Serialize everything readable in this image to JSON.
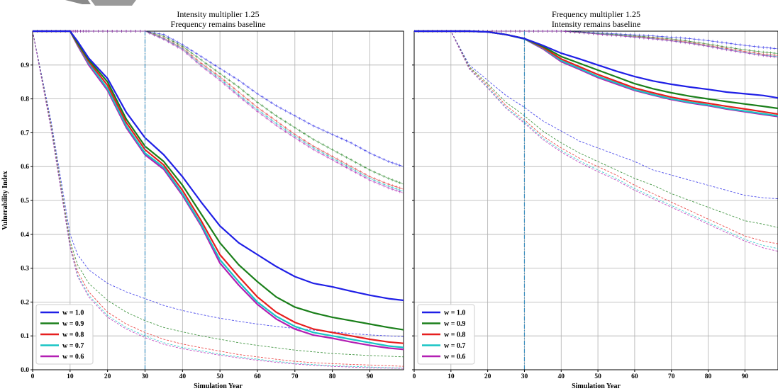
{
  "colors": {
    "w1.0": "#1f1fe6",
    "w0.9": "#1a7f1a",
    "w0.8": "#e61f1f",
    "w0.7": "#17c4c4",
    "w0.6": "#b31fb3",
    "vline": "#3a8fbf",
    "grid": "#b0b0b0"
  },
  "chart_data": [
    {
      "type": "line",
      "title": "Intensity multiplier 1.25",
      "subtitle": "Frequency remains baseline",
      "xlabel": "Simulation Year",
      "ylabel": "Vulnerability Index",
      "xlim": [
        0,
        99
      ],
      "ylim": [
        0,
        1.0
      ],
      "xticks": [
        "0",
        "10",
        "20",
        "30",
        "40",
        "50",
        "60",
        "70",
        "80",
        "90"
      ],
      "yticks": [
        "0.0",
        "0.1",
        "0.2",
        "0.3",
        "0.4",
        "0.5",
        "0.6",
        "0.7",
        "0.8",
        "0.9"
      ],
      "grid": true,
      "vline_x": 30,
      "legend_placement": "lower-left",
      "legend": [
        "w = 1.0",
        "w = 0.9",
        "w = 0.8",
        "w = 0.7",
        "w = 0.6"
      ],
      "x": [
        0,
        5,
        10,
        12,
        15,
        20,
        25,
        30,
        35,
        40,
        45,
        50,
        55,
        60,
        65,
        70,
        75,
        80,
        85,
        90,
        95,
        99
      ],
      "series_main": [
        {
          "name": "w = 1.0",
          "values": [
            1.0,
            1.0,
            1.0,
            0.97,
            0.92,
            0.86,
            0.76,
            0.685,
            0.635,
            0.57,
            0.495,
            0.425,
            0.375,
            0.34,
            0.305,
            0.275,
            0.255,
            0.245,
            0.232,
            0.22,
            0.21,
            0.205
          ]
        },
        {
          "name": "w = 0.9",
          "values": [
            1.0,
            1.0,
            1.0,
            0.965,
            0.915,
            0.85,
            0.74,
            0.66,
            0.615,
            0.545,
            0.46,
            0.375,
            0.31,
            0.26,
            0.215,
            0.185,
            0.168,
            0.155,
            0.145,
            0.135,
            0.125,
            0.118
          ]
        },
        {
          "name": "w = 0.8",
          "values": [
            1.0,
            1.0,
            1.0,
            0.962,
            0.91,
            0.84,
            0.73,
            0.65,
            0.605,
            0.53,
            0.44,
            0.34,
            0.275,
            0.215,
            0.17,
            0.14,
            0.12,
            0.11,
            0.1,
            0.09,
            0.082,
            0.078
          ]
        },
        {
          "name": "w = 0.7",
          "values": [
            1.0,
            1.0,
            1.0,
            0.96,
            0.905,
            0.83,
            0.72,
            0.64,
            0.598,
            0.52,
            0.43,
            0.325,
            0.26,
            0.2,
            0.158,
            0.128,
            0.11,
            0.1,
            0.09,
            0.08,
            0.07,
            0.066
          ]
        },
        {
          "name": "w = 0.6",
          "values": [
            1.0,
            1.0,
            1.0,
            0.958,
            0.9,
            0.825,
            0.715,
            0.635,
            0.592,
            0.515,
            0.425,
            0.315,
            0.25,
            0.193,
            0.15,
            0.12,
            0.102,
            0.093,
            0.082,
            0.072,
            0.064,
            0.06
          ]
        }
      ],
      "series_plus": [
        {
          "name": "w = 1.0",
          "values": [
            1.0,
            1.0,
            1.0,
            1.0,
            1.0,
            1.0,
            1.0,
            1.0,
            0.99,
            0.96,
            0.925,
            0.89,
            0.855,
            0.815,
            0.78,
            0.75,
            0.72,
            0.695,
            0.67,
            0.64,
            0.615,
            0.6
          ]
        },
        {
          "name": "w = 0.9",
          "values": [
            1.0,
            1.0,
            1.0,
            1.0,
            1.0,
            1.0,
            1.0,
            1.0,
            0.985,
            0.955,
            0.915,
            0.875,
            0.835,
            0.79,
            0.75,
            0.715,
            0.68,
            0.65,
            0.62,
            0.59,
            0.565,
            0.548
          ]
        },
        {
          "name": "w = 0.8",
          "values": [
            1.0,
            1.0,
            1.0,
            1.0,
            1.0,
            1.0,
            1.0,
            1.0,
            0.98,
            0.95,
            0.905,
            0.865,
            0.82,
            0.775,
            0.735,
            0.695,
            0.66,
            0.63,
            0.6,
            0.57,
            0.548,
            0.533
          ]
        },
        {
          "name": "w = 0.7",
          "values": [
            1.0,
            1.0,
            1.0,
            1.0,
            1.0,
            1.0,
            1.0,
            1.0,
            0.978,
            0.948,
            0.9,
            0.86,
            0.812,
            0.768,
            0.728,
            0.69,
            0.655,
            0.625,
            0.595,
            0.565,
            0.542,
            0.527
          ]
        },
        {
          "name": "w = 0.6",
          "values": [
            1.0,
            1.0,
            1.0,
            1.0,
            1.0,
            1.0,
            1.0,
            1.0,
            0.976,
            0.945,
            0.897,
            0.855,
            0.808,
            0.763,
            0.722,
            0.685,
            0.65,
            0.62,
            0.59,
            0.56,
            0.537,
            0.522
          ]
        }
      ],
      "series_dashed": [
        {
          "name": "w = 1.0",
          "values": [
            1.0,
            0.73,
            0.4,
            0.34,
            0.295,
            0.255,
            0.23,
            0.21,
            0.19,
            0.175,
            0.163,
            0.152,
            0.143,
            0.135,
            0.128,
            0.122,
            0.117,
            0.112,
            0.107,
            0.103,
            0.1,
            0.098
          ]
        },
        {
          "name": "w = 0.9",
          "values": [
            1.0,
            0.72,
            0.38,
            0.31,
            0.255,
            0.205,
            0.17,
            0.145,
            0.125,
            0.112,
            0.1,
            0.09,
            0.08,
            0.072,
            0.065,
            0.058,
            0.053,
            0.048,
            0.045,
            0.042,
            0.04,
            0.038
          ]
        },
        {
          "name": "w = 0.8",
          "values": [
            1.0,
            0.715,
            0.37,
            0.29,
            0.23,
            0.17,
            0.135,
            0.11,
            0.09,
            0.076,
            0.065,
            0.055,
            0.045,
            0.038,
            0.031,
            0.025,
            0.021,
            0.018,
            0.016,
            0.014,
            0.012,
            0.01
          ]
        },
        {
          "name": "w = 0.7",
          "values": [
            1.0,
            0.71,
            0.365,
            0.28,
            0.22,
            0.16,
            0.125,
            0.1,
            0.08,
            0.066,
            0.056,
            0.046,
            0.038,
            0.031,
            0.025,
            0.019,
            0.015,
            0.012,
            0.01,
            0.008,
            0.006,
            0.005
          ]
        },
        {
          "name": "w = 0.6",
          "values": [
            1.0,
            0.705,
            0.36,
            0.275,
            0.215,
            0.155,
            0.12,
            0.095,
            0.075,
            0.062,
            0.052,
            0.043,
            0.035,
            0.028,
            0.022,
            0.017,
            0.013,
            0.01,
            0.008,
            0.006,
            0.005,
            0.004
          ]
        }
      ]
    },
    {
      "type": "line",
      "title": "Frequency multiplier 1.25",
      "subtitle": "Intensity remains baseline",
      "xlabel": "Simulation Year",
      "ylabel": "",
      "xlim": [
        0,
        99
      ],
      "ylim": [
        0,
        1.0
      ],
      "xticks": [
        "0",
        "10",
        "20",
        "30",
        "40",
        "50",
        "60",
        "70",
        "80",
        "90"
      ],
      "yticks": [],
      "grid": true,
      "vline_x": 30,
      "legend_placement": "lower-left",
      "legend": [
        "w = 1.0",
        "w = 0.9",
        "w = 0.8",
        "w = 0.7",
        "w = 0.6"
      ],
      "x": [
        0,
        5,
        10,
        15,
        20,
        25,
        30,
        35,
        40,
        45,
        50,
        55,
        60,
        65,
        70,
        75,
        80,
        85,
        90,
        95,
        99
      ],
      "series_main": [
        {
          "name": "w = 1.0",
          "values": [
            1.0,
            1.0,
            1.0,
            1.0,
            0.998,
            0.99,
            0.978,
            0.958,
            0.935,
            0.918,
            0.9,
            0.882,
            0.866,
            0.853,
            0.843,
            0.835,
            0.828,
            0.82,
            0.815,
            0.81,
            0.803
          ]
        },
        {
          "name": "w = 0.9",
          "values": [
            1.0,
            1.0,
            1.0,
            1.0,
            0.998,
            0.99,
            0.978,
            0.955,
            0.925,
            0.905,
            0.885,
            0.865,
            0.845,
            0.83,
            0.818,
            0.808,
            0.8,
            0.792,
            0.785,
            0.778,
            0.772
          ]
        },
        {
          "name": "w = 0.8",
          "values": [
            1.0,
            1.0,
            1.0,
            1.0,
            0.998,
            0.99,
            0.978,
            0.952,
            0.918,
            0.895,
            0.872,
            0.852,
            0.832,
            0.818,
            0.805,
            0.795,
            0.787,
            0.778,
            0.77,
            0.762,
            0.755
          ]
        },
        {
          "name": "w = 0.7",
          "values": [
            1.0,
            1.0,
            1.0,
            1.0,
            0.998,
            0.99,
            0.977,
            0.95,
            0.913,
            0.89,
            0.866,
            0.847,
            0.827,
            0.813,
            0.8,
            0.79,
            0.782,
            0.772,
            0.764,
            0.756,
            0.75
          ]
        },
        {
          "name": "w = 0.6",
          "values": [
            1.0,
            1.0,
            1.0,
            1.0,
            0.998,
            0.99,
            0.977,
            0.948,
            0.91,
            0.887,
            0.863,
            0.844,
            0.825,
            0.811,
            0.798,
            0.788,
            0.78,
            0.77,
            0.762,
            0.754,
            0.748
          ]
        }
      ],
      "series_plus": [
        {
          "name": "w = 1.0",
          "values": [
            1.0,
            1.0,
            1.0,
            1.0,
            1.0,
            1.0,
            1.0,
            1.0,
            1.0,
            0.998,
            0.995,
            0.992,
            0.989,
            0.986,
            0.982,
            0.978,
            0.972,
            0.965,
            0.958,
            0.952,
            0.948
          ]
        },
        {
          "name": "w = 0.9",
          "values": [
            1.0,
            1.0,
            1.0,
            1.0,
            1.0,
            1.0,
            1.0,
            1.0,
            1.0,
            0.997,
            0.993,
            0.99,
            0.986,
            0.982,
            0.977,
            0.97,
            0.962,
            0.953,
            0.945,
            0.938,
            0.934
          ]
        },
        {
          "name": "w = 0.8",
          "values": [
            1.0,
            1.0,
            1.0,
            1.0,
            1.0,
            1.0,
            1.0,
            1.0,
            1.0,
            0.996,
            0.992,
            0.988,
            0.984,
            0.98,
            0.974,
            0.967,
            0.958,
            0.949,
            0.94,
            0.932,
            0.928
          ]
        },
        {
          "name": "w = 0.7",
          "values": [
            1.0,
            1.0,
            1.0,
            1.0,
            1.0,
            1.0,
            1.0,
            1.0,
            1.0,
            0.996,
            0.992,
            0.988,
            0.983,
            0.978,
            0.972,
            0.965,
            0.956,
            0.946,
            0.937,
            0.929,
            0.925
          ]
        },
        {
          "name": "w = 0.6",
          "values": [
            1.0,
            1.0,
            1.0,
            1.0,
            1.0,
            1.0,
            1.0,
            1.0,
            1.0,
            0.996,
            0.991,
            0.987,
            0.982,
            0.977,
            0.971,
            0.964,
            0.955,
            0.945,
            0.936,
            0.928,
            0.923
          ]
        }
      ],
      "series_dashed": [
        {
          "name": "w = 1.0",
          "values": [
            1.0,
            1.0,
            1.0,
            0.9,
            0.855,
            0.81,
            0.775,
            0.735,
            0.705,
            0.675,
            0.655,
            0.635,
            0.615,
            0.59,
            0.575,
            0.56,
            0.545,
            0.53,
            0.515,
            0.508,
            0.505
          ]
        },
        {
          "name": "w = 0.9",
          "values": [
            1.0,
            1.0,
            1.0,
            0.895,
            0.845,
            0.79,
            0.75,
            0.705,
            0.67,
            0.64,
            0.615,
            0.59,
            0.565,
            0.545,
            0.52,
            0.5,
            0.48,
            0.46,
            0.44,
            0.43,
            0.42
          ]
        },
        {
          "name": "w = 0.8",
          "values": [
            1.0,
            1.0,
            1.0,
            0.892,
            0.84,
            0.78,
            0.738,
            0.69,
            0.655,
            0.625,
            0.6,
            0.575,
            0.545,
            0.52,
            0.495,
            0.47,
            0.445,
            0.42,
            0.395,
            0.38,
            0.372
          ]
        },
        {
          "name": "w = 0.7",
          "values": [
            1.0,
            1.0,
            1.0,
            0.89,
            0.835,
            0.775,
            0.732,
            0.684,
            0.648,
            0.617,
            0.59,
            0.565,
            0.535,
            0.51,
            0.485,
            0.46,
            0.435,
            0.41,
            0.385,
            0.367,
            0.358
          ]
        },
        {
          "name": "w = 0.6",
          "values": [
            1.0,
            1.0,
            1.0,
            0.888,
            0.832,
            0.772,
            0.728,
            0.68,
            0.643,
            0.612,
            0.585,
            0.56,
            0.53,
            0.505,
            0.48,
            0.455,
            0.43,
            0.405,
            0.38,
            0.36,
            0.35
          ]
        }
      ]
    }
  ]
}
